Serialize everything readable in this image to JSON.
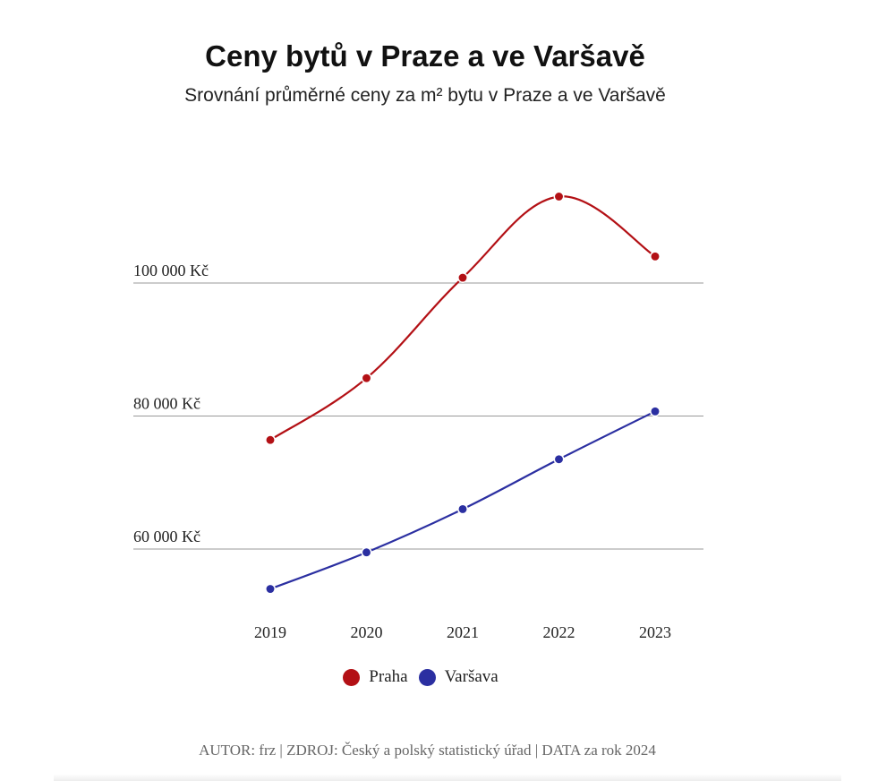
{
  "page": {
    "title": "Ceny bytů v Praze a ve Varšavě",
    "subtitle": "Srovnání průměrné ceny za m² bytu v Praze a ve Varšavě",
    "footer": "AUTOR: frz | ZDROJ: Český a polský statistický úřad | DATA za rok 2024"
  },
  "chart_data": {
    "type": "line",
    "title": "Ceny bytů v Praze a ve Varšavě",
    "subtitle": "Srovnání průměrné ceny za m² bytu v Praze a ve Varšavě",
    "x": [
      "2019",
      "2020",
      "2021",
      "2022",
      "2023"
    ],
    "y_ticks": [
      {
        "value": 60000,
        "label": "60 000 Kč"
      },
      {
        "value": 80000,
        "label": "80 000 Kč"
      },
      {
        "value": 100000,
        "label": "100 000 Kč"
      }
    ],
    "ylim": [
      50000,
      120000
    ],
    "grid": "horizontal",
    "legend_position": "bottom-center",
    "series": [
      {
        "name": "Praha",
        "color": "#b31015",
        "values": [
          76400,
          85700,
          100800,
          113000,
          104000
        ]
      },
      {
        "name": "Varšava",
        "color": "#2b2fa1",
        "values": [
          54000,
          59500,
          66000,
          73500,
          80700
        ]
      }
    ]
  }
}
